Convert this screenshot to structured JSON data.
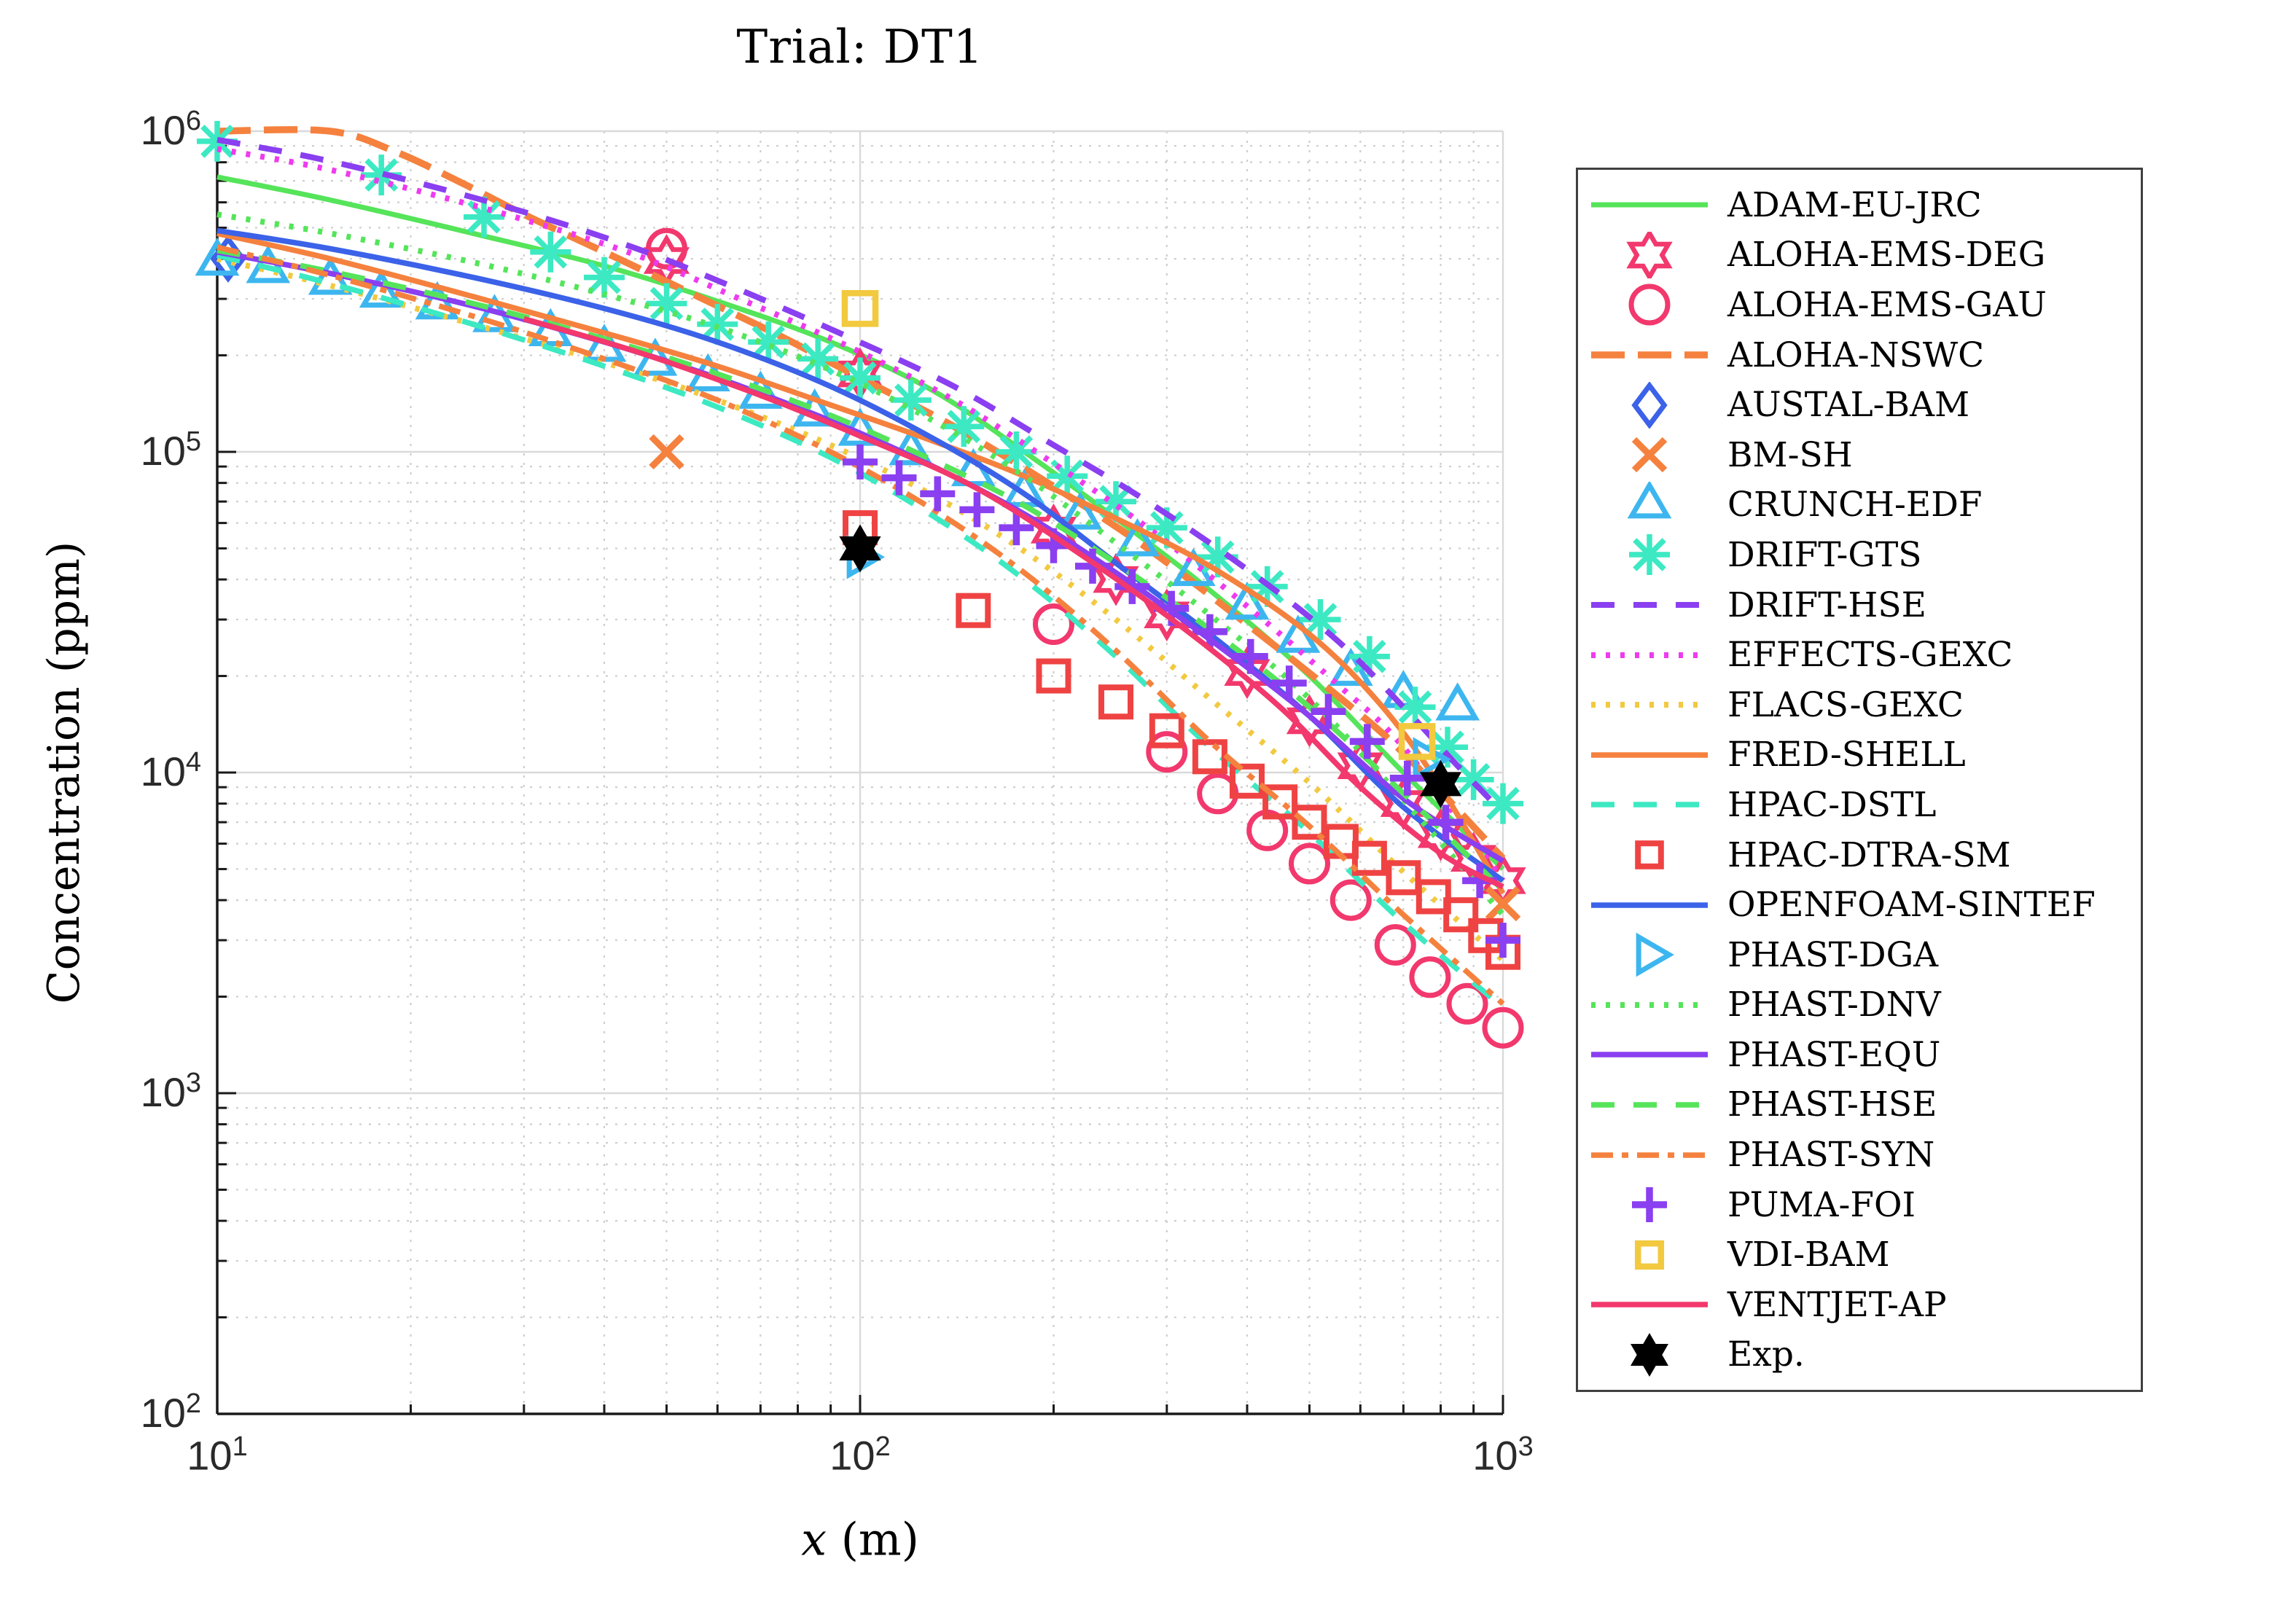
{
  "title": "Trial: DT1",
  "axes": {
    "xlabel_math": "x",
    "xlabel_rest": " (m)",
    "ylabel": "Concentration (ppm)",
    "x_ticks": [
      "10^1",
      "10^2",
      "10^3"
    ],
    "y_ticks": [
      "10^2",
      "10^3",
      "10^4",
      "10^5",
      "10^6"
    ]
  },
  "palette": {
    "green": "#55e45a",
    "crimson": "#f2386d",
    "orange": "#f5813e",
    "blue": "#3b62e8",
    "sky": "#3db6ef",
    "turquoise": "#3ce9c2",
    "violet": "#8a3ff0",
    "magenta": "#ee3bee",
    "gold": "#f2c93f",
    "red": "#ef4343",
    "black": "#000000"
  },
  "chart_data": {
    "type": "line",
    "title": "Trial: DT1",
    "xlabel": "x (m)",
    "ylabel": "Concentration (ppm)",
    "xscale": "log",
    "yscale": "log",
    "xlim": [
      10,
      1000
    ],
    "ylim": [
      100,
      1000000
    ],
    "grid": true,
    "minor_grid": true,
    "legend_position": "right-outside",
    "series": [
      {
        "name": "ADAM-EU-JRC",
        "kind": "line",
        "dash": "solid",
        "color": "#55e45a",
        "width": 7,
        "x": [
          10,
          15,
          25,
          40,
          60,
          90,
          130,
          180,
          250,
          350,
          500,
          700,
          1000
        ],
        "y": [
          720000,
          610000,
          480000,
          380000,
          295000,
          220000,
          155000,
          100000,
          62000,
          37000,
          20000,
          10000,
          5000
        ]
      },
      {
        "name": "ALOHA-EMS-DEG",
        "kind": "marker",
        "marker": "hexagram",
        "color": "#f2386d",
        "size": 30,
        "msw": 6.5,
        "x": [
          50,
          100,
          200,
          250,
          300,
          400,
          500,
          600,
          700,
          800,
          900,
          1000
        ],
        "y": [
          395000,
          175000,
          57000,
          40000,
          31000,
          20500,
          14500,
          10500,
          8000,
          6400,
          5400,
          4600
        ]
      },
      {
        "name": "ALOHA-EMS-GAU",
        "kind": "marker",
        "marker": "circle",
        "color": "#f2386d",
        "size": 25,
        "msw": 7,
        "x": [
          50,
          200,
          300,
          360,
          430,
          500,
          580,
          680,
          770,
          880,
          1000
        ],
        "y": [
          430000,
          29000,
          11600,
          8600,
          6600,
          5200,
          4000,
          2900,
          2300,
          1900,
          1600
        ]
      },
      {
        "name": "ALOHA-NSWC",
        "kind": "line",
        "dash": "longdash",
        "color": "#f5813e",
        "width": 9.5,
        "x": [
          10,
          15,
          19,
          24,
          30,
          40,
          55,
          75,
          100,
          140,
          200,
          280,
          400,
          550,
          700,
          1000
        ],
        "y": [
          1000000,
          1000000,
          860000,
          690000,
          550000,
          420000,
          310000,
          230000,
          170000,
          120000,
          78000,
          50000,
          29000,
          17500,
          11500,
          5400
        ]
      },
      {
        "name": "AUSTAL-BAM",
        "kind": "marker",
        "marker": "diamond",
        "color": "#3b62e8",
        "size": 27,
        "msw": 7,
        "x": [
          10.4
        ],
        "y": [
          400000
        ]
      },
      {
        "name": "BM-SH",
        "kind": "marker",
        "marker": "x",
        "color": "#f5813e",
        "size": 21,
        "msw": 9,
        "x": [
          50,
          1000
        ],
        "y": [
          100000,
          3900
        ]
      },
      {
        "name": "CRUNCH-EDF",
        "kind": "marker",
        "marker": "triangle-up",
        "color": "#3db6ef",
        "size": 27,
        "msw": 7,
        "x": [
          10,
          12,
          15,
          18,
          22,
          27,
          33,
          40,
          48,
          58,
          70,
          85,
          100,
          120,
          150,
          180,
          220,
          270,
          330,
          400,
          480,
          580,
          700,
          850
        ],
        "y": [
          390000,
          370000,
          340000,
          310000,
          285000,
          260000,
          235000,
          210000,
          190000,
          170000,
          150000,
          132000,
          115000,
          100000,
          86000,
          74000,
          63000,
          52000,
          42000,
          33000,
          26000,
          20500,
          17500,
          16000
        ]
      },
      {
        "name": "DRIFT-GTS",
        "kind": "marker",
        "marker": "asterisk",
        "color": "#3ce9c2",
        "size": 28,
        "msw": 7.5,
        "x": [
          10,
          18,
          26,
          33,
          40,
          50,
          60,
          72,
          86,
          100,
          120,
          145,
          175,
          210,
          250,
          300,
          360,
          430,
          520,
          620,
          730,
          820,
          900,
          1000
        ],
        "y": [
          930000,
          730000,
          540000,
          420000,
          350000,
          290000,
          250000,
          220000,
          195000,
          170000,
          145000,
          120000,
          100000,
          84000,
          70000,
          58000,
          47000,
          38000,
          30000,
          23000,
          16000,
          12000,
          9500,
          8000
        ]
      },
      {
        "name": "DRIFT-HSE",
        "kind": "line",
        "dash": "dashed",
        "color": "#8a3ff0",
        "width": 8,
        "x": [
          10,
          14,
          20,
          30,
          45,
          65,
          95,
          140,
          200,
          280,
          400,
          550,
          700,
          850,
          1000
        ],
        "y": [
          940000,
          830000,
          700000,
          560000,
          430000,
          320000,
          230000,
          160000,
          105000,
          70000,
          43000,
          26000,
          16000,
          10500,
          7500
        ]
      },
      {
        "name": "EFFECTS-GEXC",
        "kind": "line",
        "dash": "dotted",
        "color": "#ee3bee",
        "width": 8,
        "x": [
          10,
          14,
          20,
          30,
          45,
          65,
          95,
          140,
          200,
          280,
          400,
          550,
          700,
          1000
        ],
        "y": [
          880000,
          780000,
          660000,
          530000,
          410000,
          300000,
          215000,
          145000,
          92000,
          58000,
          33000,
          19000,
          12000,
          4600
        ]
      },
      {
        "name": "FLACS-GEXC",
        "kind": "line",
        "dash": "dotted",
        "color": "#f2c93f",
        "width": 8,
        "x": [
          10,
          15,
          25,
          40,
          60,
          90,
          130,
          180,
          250,
          350,
          500,
          700,
          1000
        ],
        "y": [
          400000,
          330000,
          250000,
          190000,
          145000,
          105000,
          73000,
          49000,
          30000,
          17000,
          9300,
          4900,
          2600
        ]
      },
      {
        "name": "FRED-SHELL",
        "kind": "line",
        "dash": "solid",
        "color": "#f5813e",
        "width": 7.5,
        "x": [
          10,
          15,
          25,
          40,
          60,
          90,
          130,
          180,
          250,
          350,
          500,
          650,
          800,
          1000
        ],
        "y": [
          480000,
          400000,
          305000,
          235000,
          185000,
          140000,
          108000,
          84000,
          62000,
          44000,
          27000,
          16000,
          9000,
          4200
        ]
      },
      {
        "name": "HPAC-DSTL",
        "kind": "line",
        "dash": "dashed",
        "color": "#3ce9c2",
        "width": 7.5,
        "x": [
          10,
          15,
          25,
          40,
          60,
          90,
          130,
          180,
          250,
          350,
          500,
          700,
          1000
        ],
        "y": [
          410000,
          335000,
          250000,
          185000,
          138000,
          96000,
          63000,
          40000,
          23000,
          12000,
          6500,
          3400,
          1850
        ]
      },
      {
        "name": "HPAC-DTRA-SM",
        "kind": "marker",
        "marker": "square",
        "color": "#ef4343",
        "size": 38,
        "msw": 8,
        "x": [
          100,
          150,
          200,
          250,
          300,
          350,
          400,
          450,
          500,
          560,
          620,
          700,
          780,
          860,
          940,
          1000
        ],
        "y": [
          58000,
          32000,
          20000,
          16600,
          13500,
          11200,
          9400,
          8100,
          7000,
          6100,
          5400,
          4700,
          4100,
          3600,
          3100,
          2750
        ]
      },
      {
        "name": "OPENFOAM-SINTEF",
        "kind": "line",
        "dash": "solid",
        "color": "#3b62e8",
        "width": 7.5,
        "x": [
          10,
          15,
          25,
          40,
          60,
          90,
          130,
          180,
          250,
          350,
          500,
          700,
          1000
        ],
        "y": [
          490000,
          430000,
          350000,
          280000,
          220000,
          160000,
          110000,
          74000,
          45000,
          27000,
          15000,
          7800,
          4600
        ]
      },
      {
        "name": "PHAST-DGA",
        "kind": "marker",
        "marker": "triangle-right",
        "color": "#3db6ef",
        "size": 27,
        "msw": 7,
        "x": [
          100,
          760
        ],
        "y": [
          47000,
          11000
        ]
      },
      {
        "name": "PHAST-DNV",
        "kind": "line",
        "dash": "dotted",
        "color": "#55e45a",
        "width": 8,
        "x": [
          10,
          15,
          25,
          40,
          60,
          90,
          130,
          180,
          250,
          350,
          500,
          700,
          1000
        ],
        "y": [
          550000,
          480000,
          390000,
          310000,
          245000,
          180000,
          125000,
          84000,
          52000,
          31000,
          17000,
          8200,
          3600
        ]
      },
      {
        "name": "PHAST-EQU",
        "kind": "line",
        "dash": "solid",
        "color": "#8a3ff0",
        "width": 7.5,
        "x": [
          10,
          15,
          25,
          40,
          60,
          90,
          130,
          180,
          250,
          350,
          500,
          700,
          1000
        ],
        "y": [
          420000,
          360000,
          285000,
          220000,
          170000,
          125000,
          90000,
          64000,
          42000,
          26000,
          15000,
          8300,
          5300
        ]
      },
      {
        "name": "PHAST-HSE",
        "kind": "line",
        "dash": "dashed",
        "color": "#55e45a",
        "width": 7.5,
        "x": [
          10,
          15,
          25,
          40,
          60,
          90,
          130,
          180,
          250,
          350,
          500,
          700,
          1000
        ],
        "y": [
          425000,
          365000,
          290000,
          225000,
          175000,
          130000,
          94000,
          68000,
          45000,
          28000,
          16000,
          8600,
          4300
        ]
      },
      {
        "name": "PHAST-SYN",
        "kind": "line",
        "dash": "dashdot",
        "color": "#f5813e",
        "width": 7.5,
        "x": [
          10,
          15,
          25,
          40,
          60,
          90,
          130,
          180,
          250,
          350,
          500,
          700,
          1000
        ],
        "y": [
          435000,
          355000,
          265000,
          195000,
          145000,
          100000,
          66000,
          42000,
          24000,
          12500,
          6800,
          3600,
          1900
        ]
      },
      {
        "name": "PUMA-FOI",
        "kind": "marker",
        "marker": "plus",
        "color": "#8a3ff0",
        "size": 24,
        "msw": 9.5,
        "x": [
          100,
          115,
          132,
          152,
          175,
          200,
          230,
          265,
          305,
          350,
          405,
          465,
          535,
          615,
          710,
          815,
          920,
          1000
        ],
        "y": [
          93000,
          83000,
          74000,
          66000,
          58000,
          51000,
          44000,
          38000,
          32500,
          27500,
          23000,
          19000,
          15500,
          12500,
          9600,
          7000,
          4600,
          3000
        ]
      },
      {
        "name": "VDI-BAM",
        "kind": "marker",
        "marker": "square",
        "color": "#f2c93f",
        "size": 40,
        "msw": 8.5,
        "x": [
          100,
          735
        ],
        "y": [
          280000,
          12500
        ]
      },
      {
        "name": "VENTJET-AP",
        "kind": "line",
        "dash": "solid",
        "color": "#f2386d",
        "width": 7.5,
        "x": [
          30,
          45,
          70,
          100,
          150,
          220,
          320,
          450,
          600,
          800,
          1000
        ],
        "y": [
          260000,
          205000,
          150000,
          112000,
          78000,
          48000,
          28000,
          16000,
          9000,
          5600,
          4400
        ]
      },
      {
        "name": "Exp.",
        "kind": "marker",
        "marker": "hexagram-filled",
        "color": "#000000",
        "size": 33,
        "msw": 0,
        "x": [
          100,
          800
        ],
        "y": [
          50000,
          9200
        ]
      }
    ]
  }
}
